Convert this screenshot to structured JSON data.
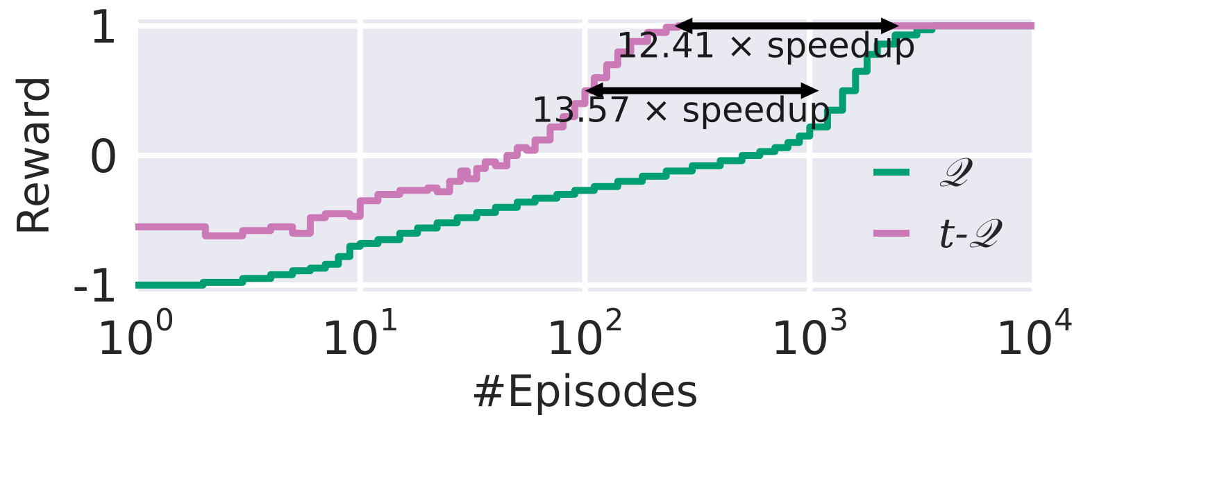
{
  "chart_data": {
    "type": "line",
    "xlabel": "#Episodes",
    "ylabel": "Reward",
    "xscale": "log",
    "xlim": [
      1,
      10000
    ],
    "ylim": [
      -1.05,
      1.05
    ],
    "x_ticks": [
      {
        "value": 1,
        "base": "10",
        "exp": "0"
      },
      {
        "value": 10,
        "base": "10",
        "exp": "1"
      },
      {
        "value": 100,
        "base": "10",
        "exp": "2"
      },
      {
        "value": 1000,
        "base": "10",
        "exp": "3"
      },
      {
        "value": 10000,
        "base": "10",
        "exp": "4"
      }
    ],
    "y_ticks": [
      {
        "value": -1,
        "label": "-1"
      },
      {
        "value": 0,
        "label": "0"
      },
      {
        "value": 1,
        "label": "1"
      }
    ],
    "grid": true,
    "legend_position": "lower-right",
    "series": [
      {
        "name": "𝒬",
        "color": "#009e73",
        "points": [
          [
            1,
            -1.0
          ],
          [
            2,
            -0.98
          ],
          [
            3,
            -0.95
          ],
          [
            4,
            -0.92
          ],
          [
            5,
            -0.89
          ],
          [
            6,
            -0.87
          ],
          [
            7,
            -0.84
          ],
          [
            8,
            -0.78
          ],
          [
            9,
            -0.7
          ],
          [
            10,
            -0.68
          ],
          [
            12,
            -0.65
          ],
          [
            15,
            -0.6
          ],
          [
            18,
            -0.56
          ],
          [
            22,
            -0.52
          ],
          [
            27,
            -0.48
          ],
          [
            33,
            -0.44
          ],
          [
            40,
            -0.4
          ],
          [
            50,
            -0.36
          ],
          [
            60,
            -0.33
          ],
          [
            75,
            -0.3
          ],
          [
            90,
            -0.27
          ],
          [
            110,
            -0.24
          ],
          [
            140,
            -0.2
          ],
          [
            180,
            -0.16
          ],
          [
            230,
            -0.12
          ],
          [
            300,
            -0.08
          ],
          [
            400,
            -0.04
          ],
          [
            500,
            0.0
          ],
          [
            600,
            0.03
          ],
          [
            700,
            0.06
          ],
          [
            800,
            0.1
          ],
          [
            900,
            0.15
          ],
          [
            1000,
            0.22
          ],
          [
            1200,
            0.35
          ],
          [
            1400,
            0.5
          ],
          [
            1600,
            0.65
          ],
          [
            1800,
            0.78
          ],
          [
            2000,
            0.86
          ],
          [
            2400,
            0.93
          ],
          [
            3000,
            0.97
          ],
          [
            3500,
            1.0
          ],
          [
            10000,
            1.0
          ]
        ]
      },
      {
        "name": "t-𝒬",
        "color": "#cc79b7",
        "points": [
          [
            1,
            -0.55
          ],
          [
            2,
            -0.55
          ],
          [
            2.05,
            -0.62
          ],
          [
            3,
            -0.62
          ],
          [
            3,
            -0.58
          ],
          [
            4,
            -0.58
          ],
          [
            4,
            -0.55
          ],
          [
            5,
            -0.55
          ],
          [
            5,
            -0.6
          ],
          [
            6,
            -0.6
          ],
          [
            6,
            -0.48
          ],
          [
            7,
            -0.48
          ],
          [
            7,
            -0.45
          ],
          [
            9,
            -0.45
          ],
          [
            9,
            -0.47
          ],
          [
            10,
            -0.47
          ],
          [
            10,
            -0.35
          ],
          [
            12,
            -0.35
          ],
          [
            12,
            -0.3
          ],
          [
            15,
            -0.3
          ],
          [
            15,
            -0.27
          ],
          [
            18,
            -0.27
          ],
          [
            20,
            -0.25
          ],
          [
            22,
            -0.28
          ],
          [
            25,
            -0.2
          ],
          [
            28,
            -0.12
          ],
          [
            30,
            -0.18
          ],
          [
            33,
            -0.1
          ],
          [
            36,
            -0.05
          ],
          [
            40,
            -0.08
          ],
          [
            45,
            0.0
          ],
          [
            50,
            0.06
          ],
          [
            55,
            0.04
          ],
          [
            60,
            0.12
          ],
          [
            70,
            0.22
          ],
          [
            80,
            0.3
          ],
          [
            90,
            0.4
          ],
          [
            100,
            0.5
          ],
          [
            110,
            0.6
          ],
          [
            125,
            0.7
          ],
          [
            140,
            0.8
          ],
          [
            160,
            0.88
          ],
          [
            190,
            0.95
          ],
          [
            230,
            0.99
          ],
          [
            260,
            1.0
          ],
          [
            10000,
            1.0
          ]
        ]
      }
    ],
    "annotations": [
      {
        "text": "12.41 × speedup",
        "x_start": 250,
        "x_end": 2500,
        "y": 1.0
      },
      {
        "text": "13.57 × speedup",
        "x_start": 100,
        "x_end": 1100,
        "y": 0.5
      }
    ]
  }
}
